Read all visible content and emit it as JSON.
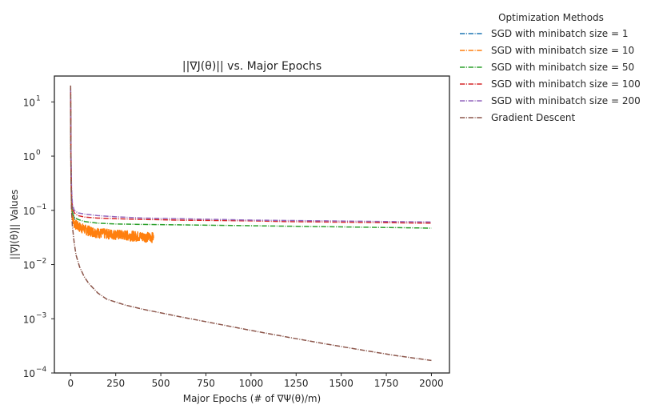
{
  "chart_data": {
    "type": "line",
    "title": "||∇J(θ)|| vs. Major Epochs",
    "xlabel": "Major Epochs (# of ∇Ψ(θ)/m)",
    "ylabel": "||∇J(θ)|| Values",
    "yscale": "log",
    "xlim": [
      -90,
      2100
    ],
    "ylim": [
      0.0001,
      30
    ],
    "x_ticks": [
      {
        "value": 0,
        "label": "0"
      },
      {
        "value": 250,
        "label": "250"
      },
      {
        "value": 500,
        "label": "500"
      },
      {
        "value": 750,
        "label": "750"
      },
      {
        "value": 1000,
        "label": "1000"
      },
      {
        "value": 1250,
        "label": "1250"
      },
      {
        "value": 1500,
        "label": "1500"
      },
      {
        "value": 1750,
        "label": "1750"
      },
      {
        "value": 2000,
        "label": "2000"
      }
    ],
    "y_ticks": [
      {
        "value": 0.0001,
        "base": "10",
        "exp": "−4"
      },
      {
        "value": 0.001,
        "base": "10",
        "exp": "−3"
      },
      {
        "value": 0.01,
        "base": "10",
        "exp": "−2"
      },
      {
        "value": 0.1,
        "base": "10",
        "exp": "−1"
      },
      {
        "value": 1,
        "base": "10",
        "exp": "0"
      },
      {
        "value": 10,
        "base": "10",
        "exp": "1"
      }
    ],
    "grid": false,
    "legend": {
      "title": "Optimization Methods",
      "placement": "outside-top-right"
    },
    "series": [
      {
        "name": "SGD with minibatch size = 1",
        "color": "#1f77b4",
        "dash": "dashdot",
        "x": [
          0,
          2,
          5,
          10,
          20,
          40
        ],
        "y": [
          3.0,
          0.6,
          0.2,
          0.1,
          0.07,
          0.06
        ]
      },
      {
        "name": "SGD with minibatch size = 10",
        "color": "#ff7f0e",
        "dash": "noisy",
        "x": [
          0,
          2,
          5,
          10,
          20,
          40,
          60,
          80,
          100,
          130,
          160,
          200,
          250,
          300,
          350,
          400,
          460
        ],
        "y": [
          12,
          0.5,
          0.12,
          0.07,
          0.055,
          0.048,
          0.045,
          0.042,
          0.04,
          0.038,
          0.036,
          0.035,
          0.034,
          0.033,
          0.032,
          0.031,
          0.03
        ]
      },
      {
        "name": "SGD with minibatch size = 50",
        "color": "#2ca02c",
        "dash": "dashdot",
        "x": [
          0,
          2,
          5,
          10,
          20,
          40,
          80,
          150,
          250,
          400,
          600,
          800,
          1000,
          1200,
          1400,
          1600,
          1800,
          2000
        ],
        "y": [
          15,
          0.8,
          0.15,
          0.09,
          0.075,
          0.068,
          0.062,
          0.058,
          0.056,
          0.055,
          0.054,
          0.053,
          0.052,
          0.051,
          0.05,
          0.049,
          0.048,
          0.047
        ]
      },
      {
        "name": "SGD with minibatch size = 100",
        "color": "#d62728",
        "dash": "dashdot",
        "x": [
          0,
          2,
          5,
          10,
          20,
          40,
          80,
          150,
          250,
          400,
          600,
          800,
          1000,
          1200,
          1400,
          1600,
          1800,
          2000
        ],
        "y": [
          16,
          1.0,
          0.2,
          0.11,
          0.09,
          0.08,
          0.075,
          0.072,
          0.07,
          0.068,
          0.066,
          0.065,
          0.064,
          0.062,
          0.061,
          0.06,
          0.059,
          0.058
        ]
      },
      {
        "name": "SGD with minibatch size = 200",
        "color": "#9467bd",
        "dash": "dashdot",
        "x": [
          0,
          2,
          5,
          10,
          20,
          40,
          80,
          150,
          250,
          400,
          600,
          800,
          1000,
          1200,
          1400,
          1600,
          1800,
          2000
        ],
        "y": [
          18,
          1.2,
          0.25,
          0.13,
          0.1,
          0.09,
          0.085,
          0.08,
          0.076,
          0.072,
          0.07,
          0.068,
          0.066,
          0.065,
          0.064,
          0.063,
          0.062,
          0.061
        ]
      },
      {
        "name": "Gradient Descent",
        "color": "#8c564b",
        "dash": "dashdot",
        "x": [
          0,
          2,
          5,
          10,
          20,
          30,
          50,
          75,
          100,
          150,
          200,
          300,
          400,
          600,
          800,
          1000,
          1200,
          1400,
          1600,
          1800,
          2000
        ],
        "y": [
          20,
          0.5,
          0.1,
          0.05,
          0.025,
          0.015,
          0.009,
          0.006,
          0.0045,
          0.003,
          0.0023,
          0.0018,
          0.0015,
          0.0011,
          0.00082,
          0.00061,
          0.00046,
          0.00035,
          0.00027,
          0.00021,
          0.00017
        ]
      }
    ]
  }
}
